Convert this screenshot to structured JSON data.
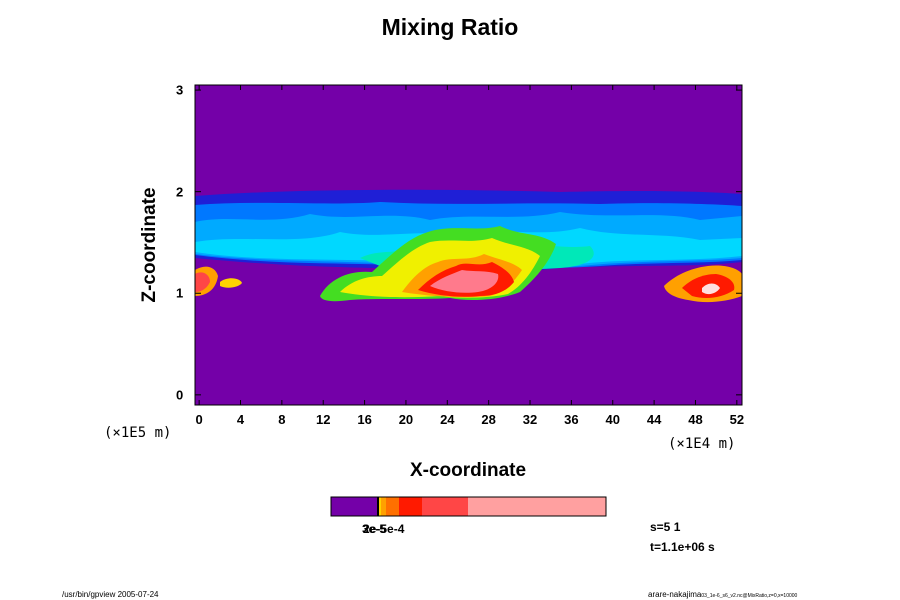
{
  "chart_data": {
    "type": "heatmap",
    "title": "Mixing Ratio",
    "xlabel": "X-coordinate",
    "ylabel": "Z-coordinate",
    "x_unit": "(×1E4 m)",
    "z_unit": "(×1E5 m)",
    "xlim": [
      -0.4,
      52.5
    ],
    "zlim": [
      -0.1,
      3.05
    ],
    "x_ticks": [
      "0",
      "4",
      "8",
      "12",
      "16",
      "20",
      "24",
      "28",
      "32",
      "36",
      "40",
      "44",
      "48",
      "52"
    ],
    "z_ticks": [
      "0",
      "1",
      "2",
      "3"
    ],
    "background_color": "#7400a8",
    "colorbar_colors": [
      "#7400a8",
      "#000000",
      "#ffd200",
      "#ffa000",
      "#ff7000",
      "#ff1a00",
      "#ff4646",
      "#ffa0a0"
    ],
    "colorbar_label": "3e-5",
    "colorbar_label_overlap": "2e-5e-4",
    "info_lines": [
      "s=5 1",
      "t=1.1e+06 s"
    ]
  },
  "footer": {
    "left": "/usr/bin/gpview 2005-07-24",
    "right": "arare-nakajima",
    "right_small": "03_1e-6_s6_v2.nc@MixRatio,z=0,x=10000"
  }
}
